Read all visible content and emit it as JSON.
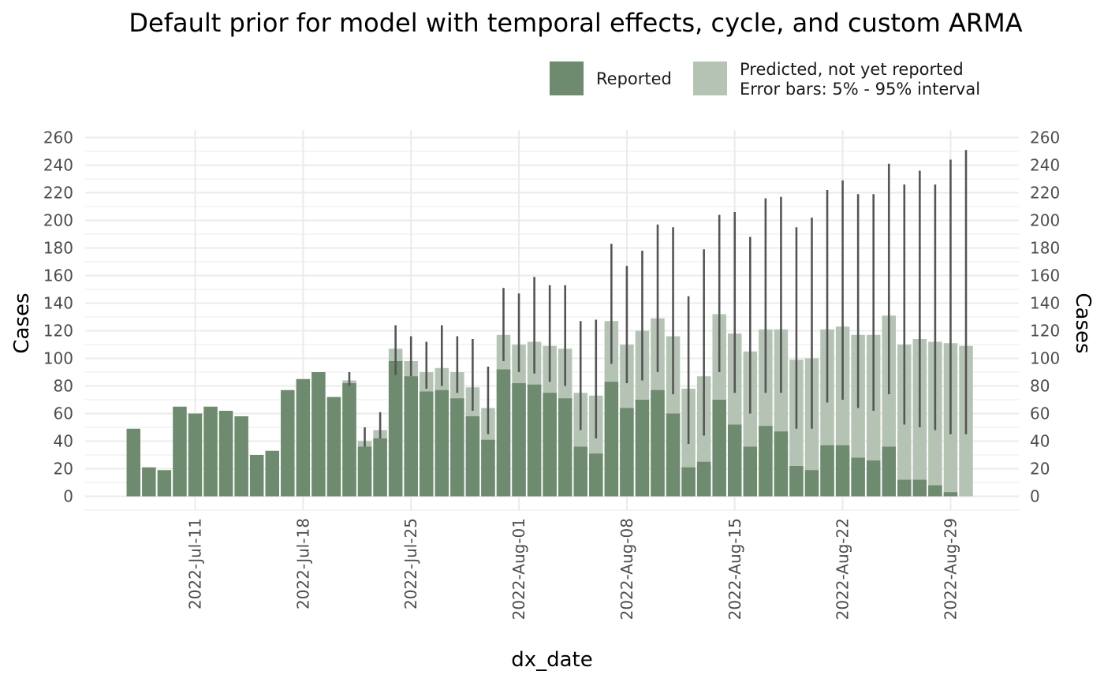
{
  "chart_data": {
    "type": "bar",
    "title": "Default prior for model with temporal effects, cycle, and custom ARMA",
    "xlabel": "dx_date",
    "ylabel": "Cases",
    "ylabel_right": "Cases",
    "ylim": [
      -10,
      260
    ],
    "yticks": [
      0,
      20,
      40,
      60,
      80,
      100,
      120,
      140,
      160,
      180,
      200,
      220,
      240,
      260
    ],
    "x_start_date": "2022-07-07",
    "x_tick_dates": [
      "2022-07-11",
      "2022-07-18",
      "2022-07-25",
      "2022-08-01",
      "2022-08-08",
      "2022-08-15",
      "2022-08-22",
      "2022-08-29"
    ],
    "x_tick_labels": [
      "2022-Jul-11",
      "2022-Jul-18",
      "2022-Jul-25",
      "2022-Aug-01",
      "2022-Aug-08",
      "2022-Aug-15",
      "2022-Aug-22",
      "2022-Aug-29"
    ],
    "grid": true,
    "legend": {
      "position": "top-right",
      "entries": [
        {
          "name": "Reported",
          "color": "#6e8a6f"
        },
        {
          "name": "Predicted, not yet reported",
          "color": "#b5c3b5"
        }
      ],
      "note": "Error bars: 5% - 95% interval"
    },
    "colors": {
      "reported": "#6e8a6f",
      "predicted": "#b5c3b5",
      "errorbar": "#555555",
      "grid": "#ebebeb"
    },
    "series": [
      {
        "name": "Reported",
        "values": [
          49,
          21,
          19,
          65,
          60,
          65,
          62,
          58,
          30,
          33,
          77,
          85,
          90,
          72,
          82,
          36,
          42,
          98,
          87,
          76,
          77,
          71,
          58,
          41,
          92,
          82,
          81,
          75,
          71,
          36,
          31,
          83,
          64,
          70,
          77,
          60,
          21,
          25,
          70,
          52,
          36,
          51,
          47,
          22,
          19,
          37,
          37,
          28,
          26,
          36,
          12,
          12,
          8,
          3,
          0
        ]
      },
      {
        "name": "Predicted, not yet reported",
        "values": [
          null,
          null,
          null,
          null,
          null,
          null,
          null,
          null,
          null,
          null,
          null,
          null,
          null,
          null,
          84,
          40,
          48,
          107,
          98,
          90,
          93,
          90,
          79,
          64,
          117,
          110,
          112,
          109,
          107,
          75,
          73,
          127,
          110,
          120,
          129,
          116,
          78,
          87,
          132,
          118,
          105,
          121,
          121,
          99,
          100,
          121,
          123,
          117,
          117,
          131,
          110,
          114,
          112,
          111,
          109
        ],
        "lower": [
          null,
          null,
          null,
          null,
          null,
          null,
          null,
          null,
          null,
          null,
          null,
          null,
          null,
          null,
          80,
          36,
          42,
          88,
          87,
          78,
          80,
          75,
          62,
          45,
          98,
          90,
          89,
          83,
          80,
          48,
          42,
          96,
          82,
          84,
          90,
          74,
          38,
          44,
          90,
          75,
          60,
          75,
          75,
          49,
          49,
          68,
          70,
          64,
          62,
          74,
          52,
          50,
          48,
          45,
          45
        ],
        "upper": [
          null,
          null,
          null,
          null,
          null,
          null,
          null,
          null,
          null,
          null,
          null,
          null,
          null,
          null,
          90,
          50,
          61,
          124,
          116,
          112,
          124,
          116,
          114,
          94,
          151,
          147,
          159,
          153,
          153,
          127,
          128,
          183,
          167,
          178,
          197,
          195,
          145,
          179,
          204,
          206,
          188,
          216,
          217,
          195,
          202,
          222,
          229,
          219,
          219,
          241,
          226,
          236,
          226,
          244,
          251
        ]
      }
    ]
  }
}
